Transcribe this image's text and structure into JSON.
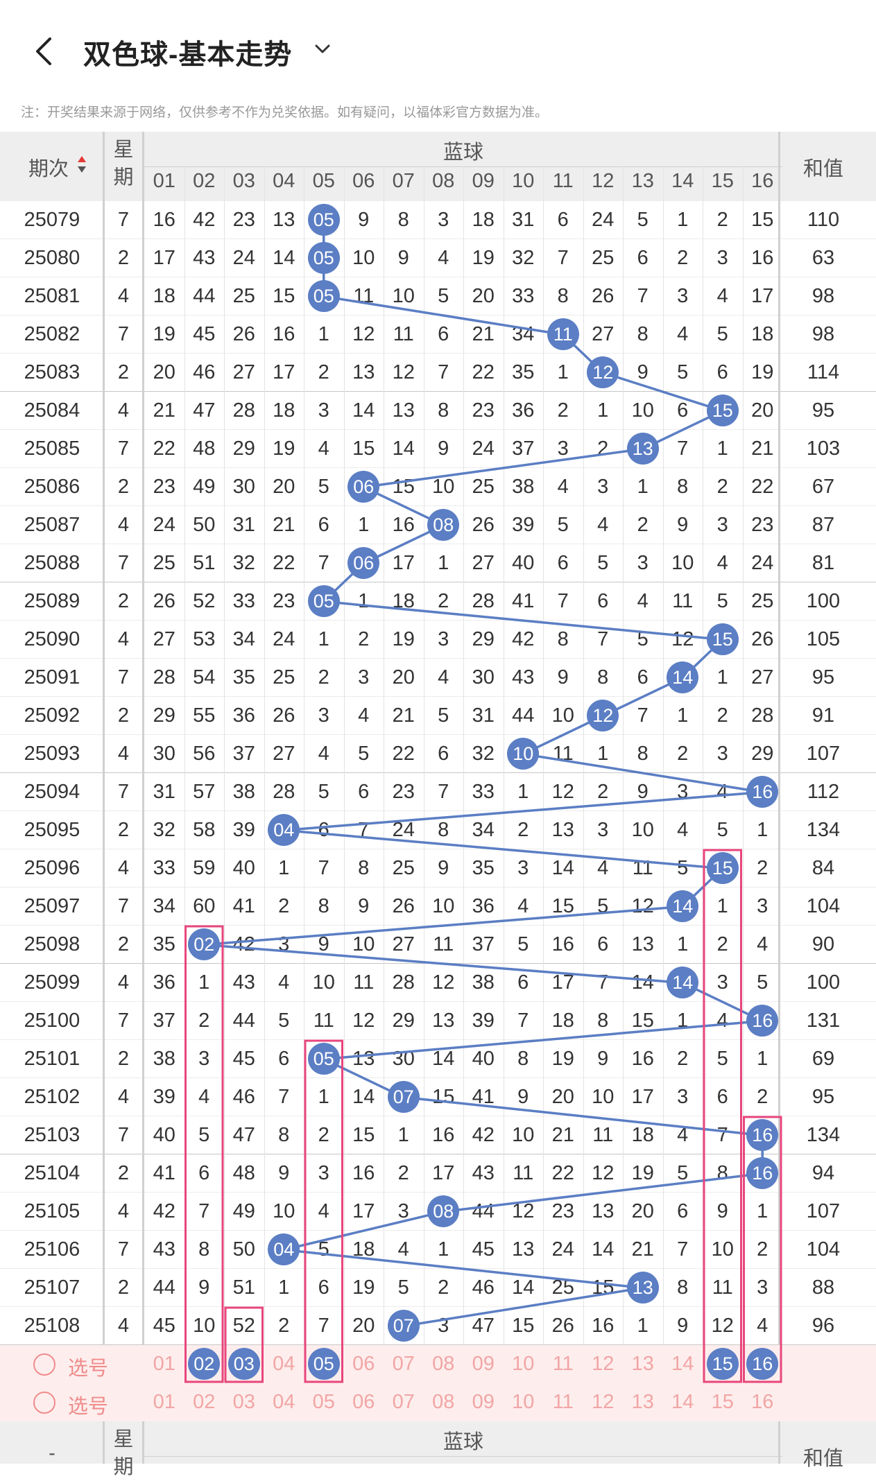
{
  "header": {
    "title": "双色球-基本走势"
  },
  "note": "注：开奖结果来源于网络，仅供参考不作为兑奖依据。如有疑问，以福体彩官方数据为准。",
  "table_header": {
    "period": "期次",
    "weekday": "星期",
    "blue": "蓝球",
    "sum": "和值"
  },
  "blue_columns": [
    "01",
    "02",
    "03",
    "04",
    "05",
    "06",
    "07",
    "08",
    "09",
    "10",
    "11",
    "12",
    "13",
    "14",
    "15",
    "16"
  ],
  "rows": [
    {
      "period": "25079",
      "weekday": "7",
      "ball": 5,
      "cells": [
        "16",
        "42",
        "23",
        "13",
        "05",
        "9",
        "8",
        "3",
        "18",
        "31",
        "6",
        "24",
        "5",
        "1",
        "2",
        "15"
      ],
      "sum": "110"
    },
    {
      "period": "25080",
      "weekday": "2",
      "ball": 5,
      "cells": [
        "17",
        "43",
        "24",
        "14",
        "05",
        "10",
        "9",
        "4",
        "19",
        "32",
        "7",
        "25",
        "6",
        "2",
        "3",
        "16"
      ],
      "sum": "63"
    },
    {
      "period": "25081",
      "weekday": "4",
      "ball": 5,
      "cells": [
        "18",
        "44",
        "25",
        "15",
        "05",
        "11",
        "10",
        "5",
        "20",
        "33",
        "8",
        "26",
        "7",
        "3",
        "4",
        "17"
      ],
      "sum": "98"
    },
    {
      "period": "25082",
      "weekday": "7",
      "ball": 11,
      "cells": [
        "19",
        "45",
        "26",
        "16",
        "1",
        "12",
        "11",
        "6",
        "21",
        "34",
        "11",
        "27",
        "8",
        "4",
        "5",
        "18"
      ],
      "sum": "98"
    },
    {
      "period": "25083",
      "weekday": "2",
      "ball": 12,
      "cells": [
        "20",
        "46",
        "27",
        "17",
        "2",
        "13",
        "12",
        "7",
        "22",
        "35",
        "1",
        "12",
        "9",
        "5",
        "6",
        "19"
      ],
      "sum": "114"
    },
    {
      "period": "25084",
      "weekday": "4",
      "ball": 15,
      "cells": [
        "21",
        "47",
        "28",
        "18",
        "3",
        "14",
        "13",
        "8",
        "23",
        "36",
        "2",
        "1",
        "10",
        "6",
        "15",
        "20"
      ],
      "sum": "95"
    },
    {
      "period": "25085",
      "weekday": "7",
      "ball": 13,
      "cells": [
        "22",
        "48",
        "29",
        "19",
        "4",
        "15",
        "14",
        "9",
        "24",
        "37",
        "3",
        "2",
        "13",
        "7",
        "1",
        "21"
      ],
      "sum": "103"
    },
    {
      "period": "25086",
      "weekday": "2",
      "ball": 6,
      "cells": [
        "23",
        "49",
        "30",
        "20",
        "5",
        "06",
        "15",
        "10",
        "25",
        "38",
        "4",
        "3",
        "1",
        "8",
        "2",
        "22"
      ],
      "sum": "67"
    },
    {
      "period": "25087",
      "weekday": "4",
      "ball": 8,
      "cells": [
        "24",
        "50",
        "31",
        "21",
        "6",
        "1",
        "16",
        "08",
        "26",
        "39",
        "5",
        "4",
        "2",
        "9",
        "3",
        "23"
      ],
      "sum": "87"
    },
    {
      "period": "25088",
      "weekday": "7",
      "ball": 6,
      "cells": [
        "25",
        "51",
        "32",
        "22",
        "7",
        "06",
        "17",
        "1",
        "27",
        "40",
        "6",
        "5",
        "3",
        "10",
        "4",
        "24"
      ],
      "sum": "81"
    },
    {
      "period": "25089",
      "weekday": "2",
      "ball": 5,
      "cells": [
        "26",
        "52",
        "33",
        "23",
        "05",
        "1",
        "18",
        "2",
        "28",
        "41",
        "7",
        "6",
        "4",
        "11",
        "5",
        "25"
      ],
      "sum": "100"
    },
    {
      "period": "25090",
      "weekday": "4",
      "ball": 15,
      "cells": [
        "27",
        "53",
        "34",
        "24",
        "1",
        "2",
        "19",
        "3",
        "29",
        "42",
        "8",
        "7",
        "5",
        "12",
        "15",
        "26"
      ],
      "sum": "105"
    },
    {
      "period": "25091",
      "weekday": "7",
      "ball": 14,
      "cells": [
        "28",
        "54",
        "35",
        "25",
        "2",
        "3",
        "20",
        "4",
        "30",
        "43",
        "9",
        "8",
        "6",
        "14",
        "1",
        "27"
      ],
      "sum": "95"
    },
    {
      "period": "25092",
      "weekday": "2",
      "ball": 12,
      "cells": [
        "29",
        "55",
        "36",
        "26",
        "3",
        "4",
        "21",
        "5",
        "31",
        "44",
        "10",
        "12",
        "7",
        "1",
        "2",
        "28"
      ],
      "sum": "91"
    },
    {
      "period": "25093",
      "weekday": "4",
      "ball": 10,
      "cells": [
        "30",
        "56",
        "37",
        "27",
        "4",
        "5",
        "22",
        "6",
        "32",
        "10",
        "11",
        "1",
        "8",
        "2",
        "3",
        "29"
      ],
      "sum": "107"
    },
    {
      "period": "25094",
      "weekday": "7",
      "ball": 16,
      "cells": [
        "31",
        "57",
        "38",
        "28",
        "5",
        "6",
        "23",
        "7",
        "33",
        "1",
        "12",
        "2",
        "9",
        "3",
        "4",
        "16"
      ],
      "sum": "112"
    },
    {
      "period": "25095",
      "weekday": "2",
      "ball": 4,
      "cells": [
        "32",
        "58",
        "39",
        "04",
        "6",
        "7",
        "24",
        "8",
        "34",
        "2",
        "13",
        "3",
        "10",
        "4",
        "5",
        "1"
      ],
      "sum": "134"
    },
    {
      "period": "25096",
      "weekday": "4",
      "ball": 15,
      "cells": [
        "33",
        "59",
        "40",
        "1",
        "7",
        "8",
        "25",
        "9",
        "35",
        "3",
        "14",
        "4",
        "11",
        "5",
        "15",
        "2"
      ],
      "sum": "84"
    },
    {
      "period": "25097",
      "weekday": "7",
      "ball": 14,
      "cells": [
        "34",
        "60",
        "41",
        "2",
        "8",
        "9",
        "26",
        "10",
        "36",
        "4",
        "15",
        "5",
        "12",
        "14",
        "1",
        "3"
      ],
      "sum": "104"
    },
    {
      "period": "25098",
      "weekday": "2",
      "ball": 2,
      "cells": [
        "35",
        "02",
        "42",
        "3",
        "9",
        "10",
        "27",
        "11",
        "37",
        "5",
        "16",
        "6",
        "13",
        "1",
        "2",
        "4"
      ],
      "sum": "90"
    },
    {
      "period": "25099",
      "weekday": "4",
      "ball": 14,
      "cells": [
        "36",
        "1",
        "43",
        "4",
        "10",
        "11",
        "28",
        "12",
        "38",
        "6",
        "17",
        "7",
        "14",
        "14",
        "3",
        "5"
      ],
      "sum": "100"
    },
    {
      "period": "25100",
      "weekday": "7",
      "ball": 16,
      "cells": [
        "37",
        "2",
        "44",
        "5",
        "11",
        "12",
        "29",
        "13",
        "39",
        "7",
        "18",
        "8",
        "15",
        "1",
        "4",
        "16"
      ],
      "sum": "131"
    },
    {
      "period": "25101",
      "weekday": "2",
      "ball": 5,
      "cells": [
        "38",
        "3",
        "45",
        "6",
        "05",
        "13",
        "30",
        "14",
        "40",
        "8",
        "19",
        "9",
        "16",
        "2",
        "5",
        "1"
      ],
      "sum": "69"
    },
    {
      "period": "25102",
      "weekday": "4",
      "ball": 7,
      "cells": [
        "39",
        "4",
        "46",
        "7",
        "1",
        "14",
        "07",
        "15",
        "41",
        "9",
        "20",
        "10",
        "17",
        "3",
        "6",
        "2"
      ],
      "sum": "95"
    },
    {
      "period": "25103",
      "weekday": "7",
      "ball": 16,
      "cells": [
        "40",
        "5",
        "47",
        "8",
        "2",
        "15",
        "1",
        "16",
        "42",
        "10",
        "21",
        "11",
        "18",
        "4",
        "7",
        "16"
      ],
      "sum": "134"
    },
    {
      "period": "25104",
      "weekday": "2",
      "ball": 16,
      "cells": [
        "41",
        "6",
        "48",
        "9",
        "3",
        "16",
        "2",
        "17",
        "43",
        "11",
        "22",
        "12",
        "19",
        "5",
        "8",
        "16"
      ],
      "sum": "94"
    },
    {
      "period": "25105",
      "weekday": "4",
      "ball": 8,
      "cells": [
        "42",
        "7",
        "49",
        "10",
        "4",
        "17",
        "3",
        "08",
        "44",
        "12",
        "23",
        "13",
        "20",
        "6",
        "9",
        "1"
      ],
      "sum": "107"
    },
    {
      "period": "25106",
      "weekday": "7",
      "ball": 4,
      "cells": [
        "43",
        "8",
        "50",
        "04",
        "5",
        "18",
        "4",
        "1",
        "45",
        "13",
        "24",
        "14",
        "21",
        "7",
        "10",
        "2"
      ],
      "sum": "104"
    },
    {
      "period": "25107",
      "weekday": "2",
      "ball": 13,
      "cells": [
        "44",
        "9",
        "51",
        "1",
        "6",
        "19",
        "5",
        "2",
        "46",
        "14",
        "25",
        "15",
        "13",
        "8",
        "11",
        "3"
      ],
      "sum": "88"
    },
    {
      "period": "25108",
      "weekday": "4",
      "ball": 7,
      "cells": [
        "45",
        "10",
        "52",
        "2",
        "7",
        "20",
        "07",
        "3",
        "47",
        "15",
        "26",
        "16",
        "1",
        "9",
        "12",
        "4"
      ],
      "sum": "96"
    }
  ],
  "select_rows": [
    {
      "label": "选号",
      "selected": [
        2,
        3,
        5,
        15,
        16
      ]
    },
    {
      "label": "选号",
      "selected": []
    }
  ],
  "footer_header": {
    "period": "-",
    "weekday": "星期",
    "blue": "蓝球",
    "sum": "和值"
  },
  "colors": {
    "ball": "#5b7ec4",
    "highlight": "#e8467c",
    "select_bg": "#fdeeed",
    "select_text": "#f2a5a5"
  }
}
